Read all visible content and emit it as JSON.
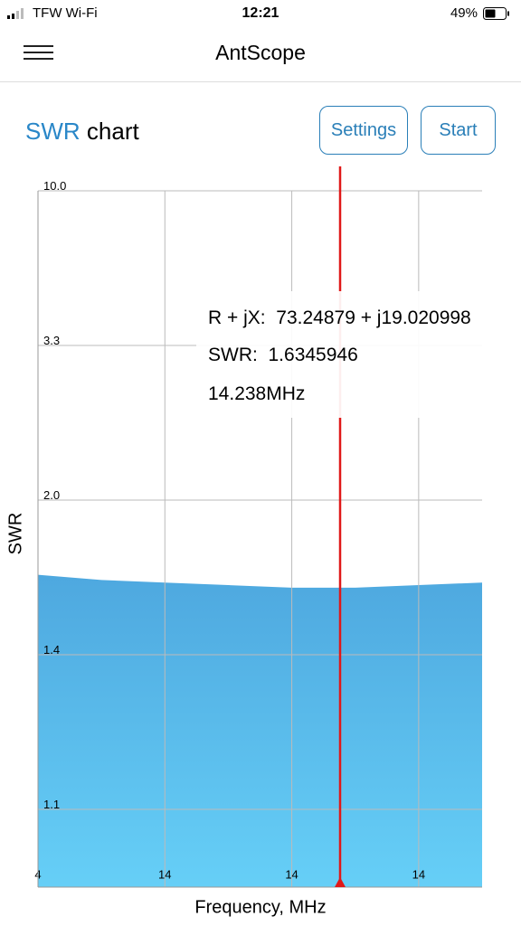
{
  "status_bar": {
    "carrier": "TFW Wi-Fi",
    "time": "12:21",
    "battery": "49%"
  },
  "header": {
    "title": "AntScope"
  },
  "section": {
    "title_accent": "SWR",
    "title_rest": "chart",
    "buttons": [
      "Settings",
      "Start"
    ]
  },
  "tooltip": {
    "impedance_label": "R + jX:",
    "impedance_value": "73.24879 + j19.020998",
    "swr_label": "SWR:",
    "swr_value": "1.6345946",
    "frequency": "14.238MHz"
  },
  "chart_data": {
    "type": "area",
    "x_label": "Frequency, MHz",
    "y_label": "SWR",
    "categories": [
      "4",
      null,
      "14",
      null,
      "14",
      null,
      "14",
      null
    ],
    "series": [
      {
        "name": "SWR",
        "color": "#5bbcee",
        "values": [
          1.71,
          1.69,
          1.68,
          1.67,
          1.66,
          1.66,
          1.67,
          1.68
        ]
      }
    ],
    "ylim": [
      1.0,
      10.0
    ],
    "yticks": [
      {
        "value": 10.0,
        "label": "10.0"
      },
      3.3,
      {
        "value": 2.0,
        "label": "2.0"
      },
      1.4,
      1.1
    ],
    "grid": true
  }
}
